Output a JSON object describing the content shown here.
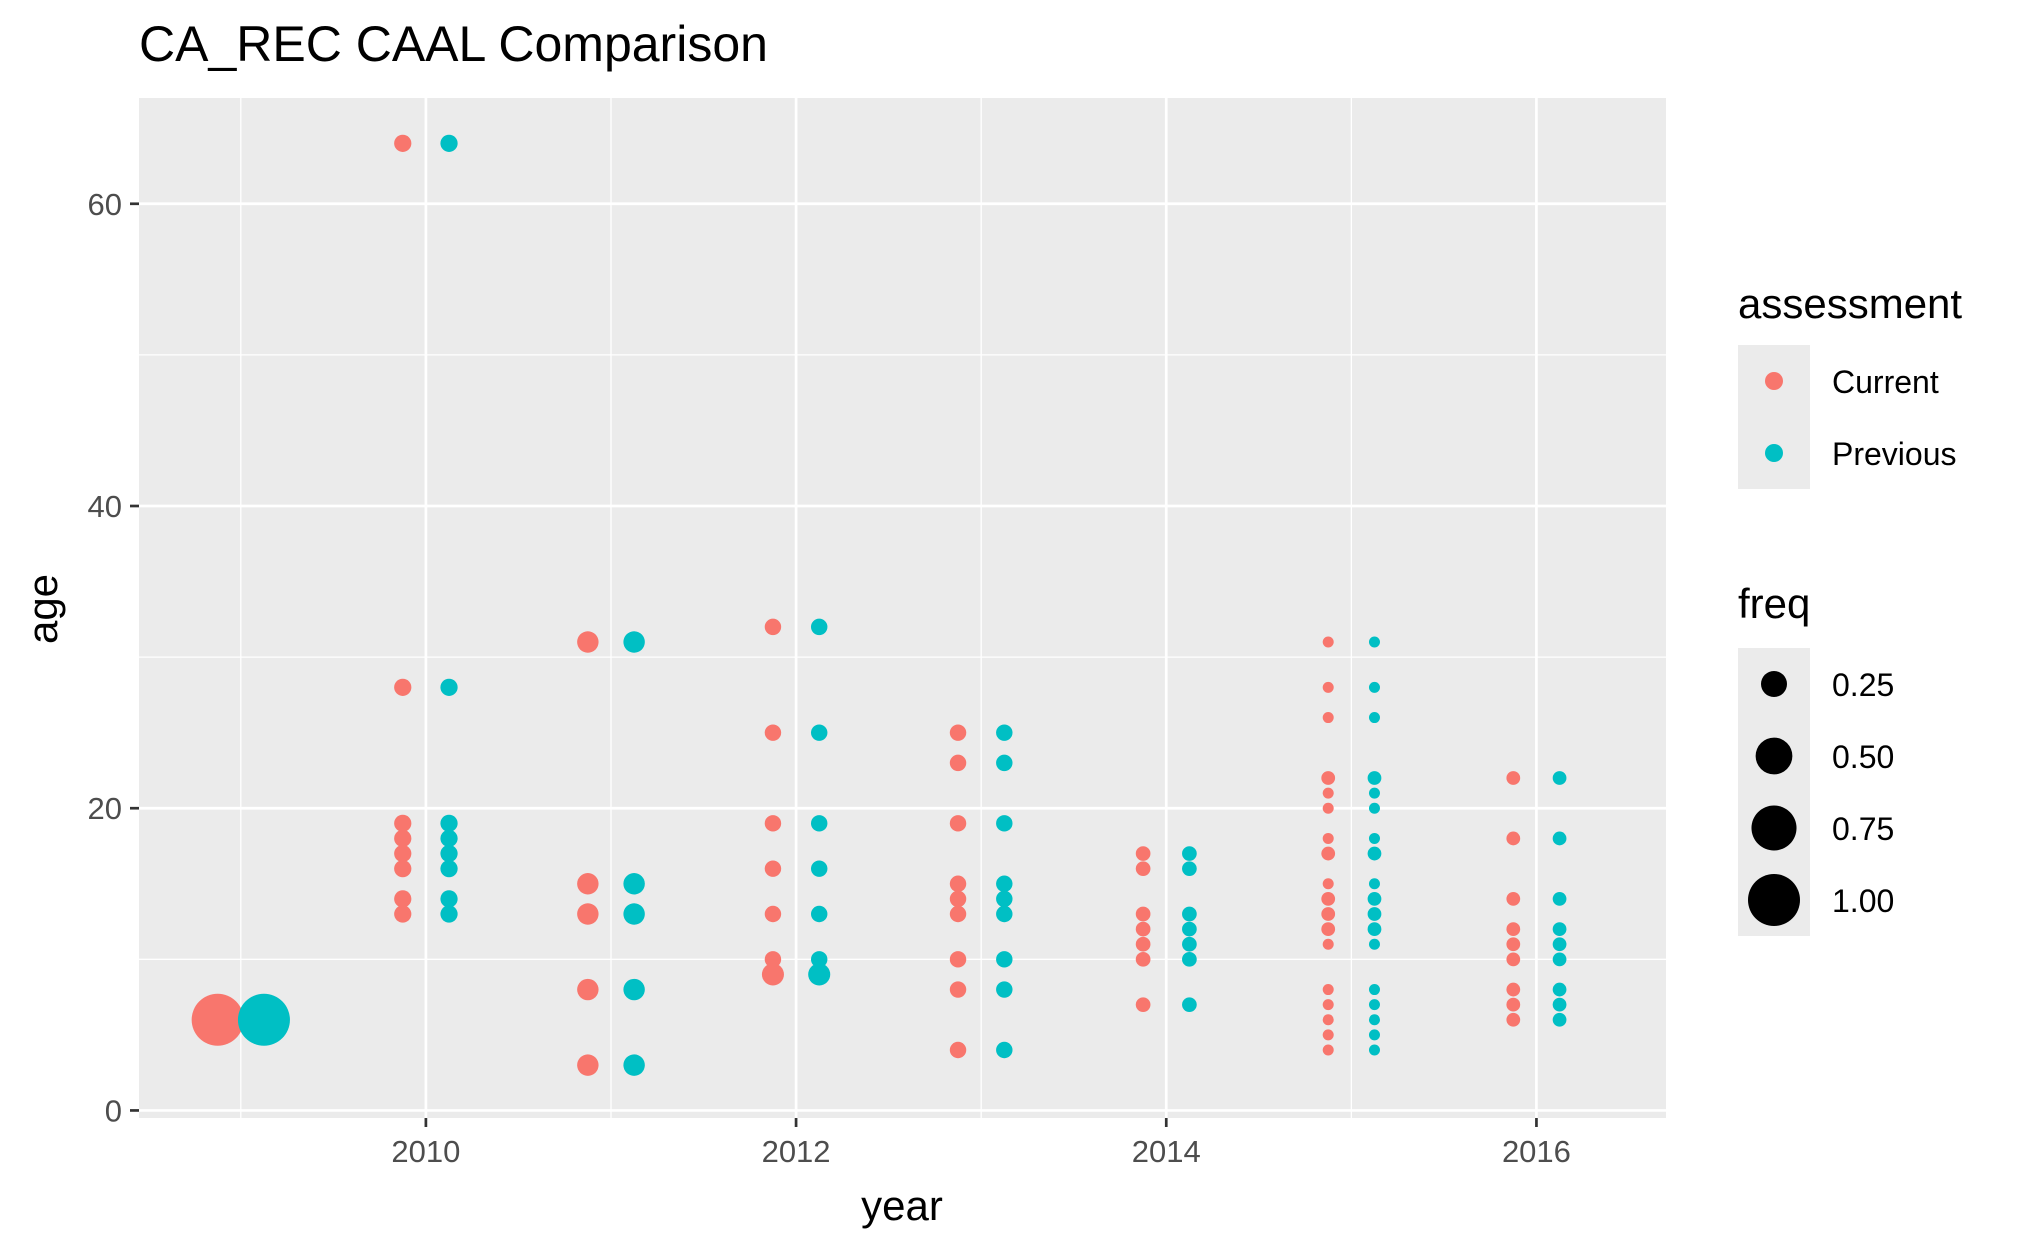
{
  "chart_data": {
    "type": "scatter",
    "title": "CA_REC CAAL Comparison",
    "xlabel": "year",
    "ylabel": "age",
    "xlim": [
      2008.45,
      2016.7
    ],
    "ylim": [
      -0.5,
      67
    ],
    "x_ticks": [
      2010,
      2012,
      2014,
      2016
    ],
    "y_ticks": [
      0,
      20,
      40,
      60
    ],
    "x_tick_labels": [
      "2010",
      "2012",
      "2014",
      "2016"
    ],
    "y_tick_labels": [
      "0",
      "20",
      "40",
      "60"
    ],
    "grid": true,
    "dodge": 0.125,
    "legend_placement": "right",
    "legends": {
      "color": {
        "title": "assessment",
        "entries": [
          {
            "name": "Current",
            "color": "#F8766D"
          },
          {
            "name": "Previous",
            "color": "#00BFC4"
          }
        ]
      },
      "size": {
        "title": "freq",
        "entries": [
          {
            "label": "0.25",
            "value": 0.25
          },
          {
            "label": "0.50",
            "value": 0.5
          },
          {
            "label": "0.75",
            "value": 0.75
          },
          {
            "label": "1.00",
            "value": 1.0
          }
        ]
      }
    },
    "groups": [
      {
        "year": 2009,
        "points": [
          {
            "age": 6,
            "freq": 1.0
          }
        ]
      },
      {
        "year": 2010,
        "points": [
          {
            "age": 64,
            "freq": 0.11
          },
          {
            "age": 28,
            "freq": 0.11
          },
          {
            "age": 19,
            "freq": 0.11
          },
          {
            "age": 18,
            "freq": 0.11
          },
          {
            "age": 17,
            "freq": 0.11
          },
          {
            "age": 16,
            "freq": 0.11
          },
          {
            "age": 14,
            "freq": 0.11
          },
          {
            "age": 13,
            "freq": 0.11
          }
        ]
      },
      {
        "year": 2011,
        "points": [
          {
            "age": 31,
            "freq": 0.17
          },
          {
            "age": 15,
            "freq": 0.17
          },
          {
            "age": 13,
            "freq": 0.17
          },
          {
            "age": 8,
            "freq": 0.17
          },
          {
            "age": 3,
            "freq": 0.17
          }
        ]
      },
      {
        "year": 2012,
        "points": [
          {
            "age": 32,
            "freq": 0.1
          },
          {
            "age": 25,
            "freq": 0.1
          },
          {
            "age": 19,
            "freq": 0.1
          },
          {
            "age": 16,
            "freq": 0.1
          },
          {
            "age": 13,
            "freq": 0.1
          },
          {
            "age": 10,
            "freq": 0.1
          },
          {
            "age": 9,
            "freq": 0.18
          }
        ]
      },
      {
        "year": 2013,
        "points": [
          {
            "age": 25,
            "freq": 0.1
          },
          {
            "age": 23,
            "freq": 0.1
          },
          {
            "age": 19,
            "freq": 0.1
          },
          {
            "age": 15,
            "freq": 0.1
          },
          {
            "age": 14,
            "freq": 0.1
          },
          {
            "age": 13,
            "freq": 0.1
          },
          {
            "age": 10,
            "freq": 0.1
          },
          {
            "age": 8,
            "freq": 0.1
          },
          {
            "age": 4,
            "freq": 0.1
          }
        ]
      },
      {
        "year": 2014,
        "points": [
          {
            "age": 17,
            "freq": 0.08
          },
          {
            "age": 16,
            "freq": 0.08
          },
          {
            "age": 13,
            "freq": 0.08
          },
          {
            "age": 12,
            "freq": 0.08
          },
          {
            "age": 11,
            "freq": 0.08
          },
          {
            "age": 10,
            "freq": 0.08
          },
          {
            "age": 7,
            "freq": 0.08
          }
        ]
      },
      {
        "year": 2015,
        "points": [
          {
            "age": 31,
            "freq": 0.02
          },
          {
            "age": 28,
            "freq": 0.02
          },
          {
            "age": 26,
            "freq": 0.02
          },
          {
            "age": 22,
            "freq": 0.07
          },
          {
            "age": 21,
            "freq": 0.02
          },
          {
            "age": 20,
            "freq": 0.02
          },
          {
            "age": 18,
            "freq": 0.02
          },
          {
            "age": 17,
            "freq": 0.07
          },
          {
            "age": 15,
            "freq": 0.02
          },
          {
            "age": 14,
            "freq": 0.07
          },
          {
            "age": 13,
            "freq": 0.07
          },
          {
            "age": 12,
            "freq": 0.07
          },
          {
            "age": 11,
            "freq": 0.02
          },
          {
            "age": 8,
            "freq": 0.02
          },
          {
            "age": 7,
            "freq": 0.02
          },
          {
            "age": 6,
            "freq": 0.02
          },
          {
            "age": 5,
            "freq": 0.02
          },
          {
            "age": 4,
            "freq": 0.02
          }
        ]
      },
      {
        "year": 2016,
        "points": [
          {
            "age": 22,
            "freq": 0.07
          },
          {
            "age": 18,
            "freq": 0.07
          },
          {
            "age": 14,
            "freq": 0.07
          },
          {
            "age": 12,
            "freq": 0.07
          },
          {
            "age": 11,
            "freq": 0.07
          },
          {
            "age": 10,
            "freq": 0.07
          },
          {
            "age": 8,
            "freq": 0.07
          },
          {
            "age": 7,
            "freq": 0.07
          },
          {
            "age": 6,
            "freq": 0.07
          }
        ]
      }
    ]
  }
}
